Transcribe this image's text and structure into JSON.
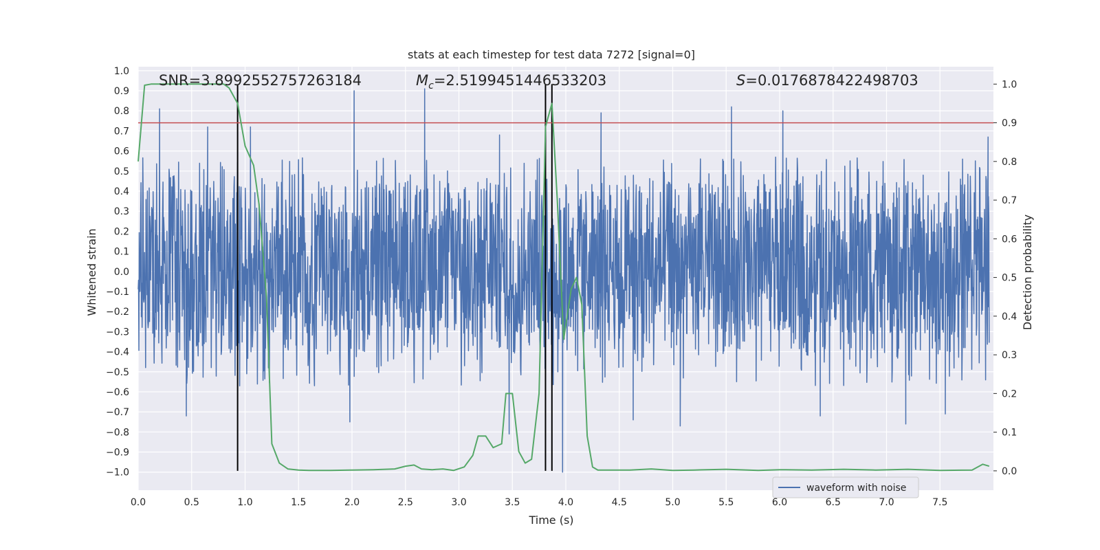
{
  "chart_data": {
    "type": "line",
    "title": "stats at each timestep for test data 7272 [signal=0]",
    "xlabel": "Time (s)",
    "ylabel_left": "Whitened strain",
    "ylabel_right": "Detection probability",
    "xlim": [
      0,
      8
    ],
    "ylim_left": [
      -1.09,
      1.02
    ],
    "ylim_right": [
      -0.05,
      1.045
    ],
    "x_ticks": [
      "0.0",
      "0.5",
      "1.0",
      "1.5",
      "2.0",
      "2.5",
      "3.0",
      "3.5",
      "4.0",
      "4.5",
      "5.0",
      "5.5",
      "6.0",
      "6.5",
      "7.0",
      "7.5"
    ],
    "y_left_ticks": [
      "1.0",
      "0.9",
      "0.8",
      "0.7",
      "0.6",
      "0.5",
      "0.4",
      "0.3",
      "0.2",
      "0.1",
      "0.0",
      "−0.1",
      "−0.2",
      "−0.3",
      "−0.4",
      "−0.5",
      "−0.6",
      "−0.7",
      "−0.8",
      "−0.9",
      "−1.0"
    ],
    "y_left_tick_values": [
      1.0,
      0.9,
      0.8,
      0.7,
      0.6,
      0.5,
      0.4,
      0.3,
      0.2,
      0.1,
      0.0,
      -0.1,
      -0.2,
      -0.3,
      -0.4,
      -0.5,
      -0.6,
      -0.7,
      -0.8,
      -0.9,
      -1.0
    ],
    "y_right_ticks": [
      "1.0",
      "0.9",
      "0.8",
      "0.7",
      "0.6",
      "0.5",
      "0.4",
      "0.3",
      "0.2",
      "0.1",
      "0.0"
    ],
    "y_right_tick_values": [
      1.0,
      0.9,
      0.8,
      0.7,
      0.6,
      0.5,
      0.4,
      0.3,
      0.2,
      0.1,
      0.0
    ],
    "annotations": {
      "snr": "SNR=3.8992552757263184",
      "mc_symbol": "M",
      "mc_sub": "c",
      "mc_value": "=2.5199451446533203",
      "s_symbol": "S",
      "s_value": "=0.0176878422498703"
    },
    "threshold": {
      "value": 0.9,
      "axis": "right",
      "color": "#c44e52"
    },
    "vertical_lines": [
      0.93,
      3.81,
      3.87
    ],
    "waveform": {
      "name": "waveform with noise",
      "color": "#4c72b0",
      "envelope_typical": [
        -0.4,
        0.45
      ],
      "spikes": [
        {
          "x": 0.2,
          "y": 0.81
        },
        {
          "x": 0.45,
          "y": -0.72
        },
        {
          "x": 0.65,
          "y": 0.72
        },
        {
          "x": 1.05,
          "y": 0.72
        },
        {
          "x": 2.02,
          "y": 0.9
        },
        {
          "x": 1.98,
          "y": -0.75
        },
        {
          "x": 2.68,
          "y": 0.91
        },
        {
          "x": 3.47,
          "y": -0.81
        },
        {
          "x": 3.38,
          "y": 0.68
        },
        {
          "x": 3.97,
          "y": -1.0
        },
        {
          "x": 4.33,
          "y": 0.79
        },
        {
          "x": 4.63,
          "y": -0.74
        },
        {
          "x": 5.07,
          "y": -0.77
        },
        {
          "x": 5.55,
          "y": 0.82
        },
        {
          "x": 6.03,
          "y": 0.8
        },
        {
          "x": 6.38,
          "y": -0.72
        },
        {
          "x": 7.18,
          "y": -0.76
        },
        {
          "x": 7.55,
          "y": -0.71
        },
        {
          "x": 7.95,
          "y": 0.67
        }
      ]
    },
    "probability": {
      "color": "#55a868",
      "axis": "right",
      "x": [
        0.0,
        0.06,
        0.12,
        0.2,
        0.3,
        0.4,
        0.5,
        0.6,
        0.7,
        0.8,
        0.85,
        0.93,
        1.0,
        1.08,
        1.13,
        1.2,
        1.25,
        1.32,
        1.4,
        1.5,
        1.6,
        1.8,
        2.0,
        2.2,
        2.4,
        2.5,
        2.58,
        2.65,
        2.75,
        2.85,
        2.95,
        3.05,
        3.13,
        3.18,
        3.25,
        3.32,
        3.4,
        3.44,
        3.5,
        3.56,
        3.62,
        3.68,
        3.75,
        3.81,
        3.87,
        3.92,
        3.98,
        4.05,
        4.1,
        4.15,
        4.2,
        4.25,
        4.3,
        4.4,
        4.6,
        4.8,
        5.0,
        5.2,
        5.5,
        5.8,
        6.0,
        6.3,
        6.6,
        6.9,
        7.2,
        7.5,
        7.8,
        7.9,
        7.96
      ],
      "y": [
        0.8,
        0.997,
        1.0,
        1.0,
        1.0,
        1.0,
        1.0,
        1.0,
        1.0,
        1.0,
        0.99,
        0.95,
        0.84,
        0.79,
        0.69,
        0.45,
        0.07,
        0.02,
        0.005,
        0.002,
        0.001,
        0.001,
        0.002,
        0.003,
        0.005,
        0.012,
        0.015,
        0.005,
        0.003,
        0.005,
        0.001,
        0.01,
        0.04,
        0.09,
        0.09,
        0.06,
        0.07,
        0.2,
        0.2,
        0.05,
        0.02,
        0.03,
        0.2,
        0.89,
        0.95,
        0.7,
        0.34,
        0.47,
        0.5,
        0.43,
        0.09,
        0.01,
        0.002,
        0.002,
        0.002,
        0.005,
        0.001,
        0.002,
        0.004,
        0.001,
        0.003,
        0.002,
        0.004,
        0.002,
        0.004,
        0.001,
        0.002,
        0.017,
        0.012
      ]
    },
    "legend": {
      "placement": "lower-right",
      "entries": [
        "waveform with noise"
      ]
    },
    "grid": true
  }
}
